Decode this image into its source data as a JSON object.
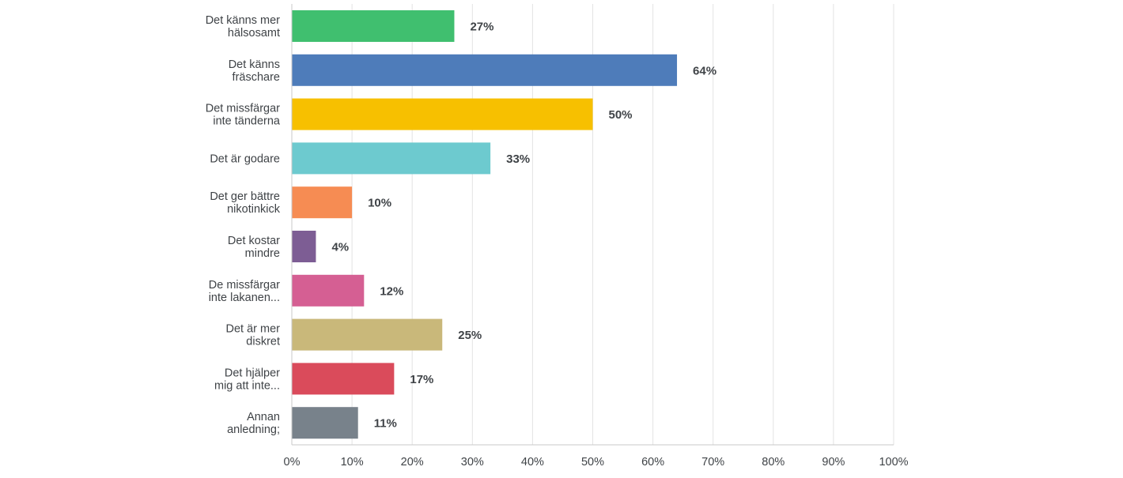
{
  "chart_data": {
    "type": "bar",
    "orientation": "horizontal",
    "categories": [
      [
        "Det känns mer",
        "hälsosamt"
      ],
      [
        "Det känns",
        "fräschare"
      ],
      [
        "Det missfärgar",
        "inte tänderna"
      ],
      [
        "Det är godare"
      ],
      [
        "Det ger bättre",
        "nikotinkick"
      ],
      [
        "Det kostar",
        "mindre"
      ],
      [
        "De missfärgar",
        "inte lakanen..."
      ],
      [
        "Det är mer",
        "diskret"
      ],
      [
        "Det hjälper",
        "mig att inte..."
      ],
      [
        "Annan",
        "anledning;"
      ]
    ],
    "values": [
      27,
      64,
      50,
      33,
      10,
      4,
      12,
      25,
      17,
      11
    ],
    "value_labels": [
      "27%",
      "64%",
      "50%",
      "33%",
      "10%",
      "4%",
      "12%",
      "25%",
      "17%",
      "11%"
    ],
    "colors": [
      "#40bf6f",
      "#4e7cba",
      "#f7c000",
      "#6dcacf",
      "#f68c53",
      "#7d5d94",
      "#d55f93",
      "#c9b87a",
      "#da4b5b",
      "#78828b"
    ],
    "xlim": [
      0,
      100
    ],
    "ticks": [
      0,
      10,
      20,
      30,
      40,
      50,
      60,
      70,
      80,
      90,
      100
    ],
    "tick_labels": [
      "0%",
      "10%",
      "20%",
      "30%",
      "40%",
      "50%",
      "60%",
      "70%",
      "80%",
      "90%",
      "100%"
    ],
    "grid": true,
    "title": "",
    "xlabel": "",
    "ylabel": ""
  }
}
